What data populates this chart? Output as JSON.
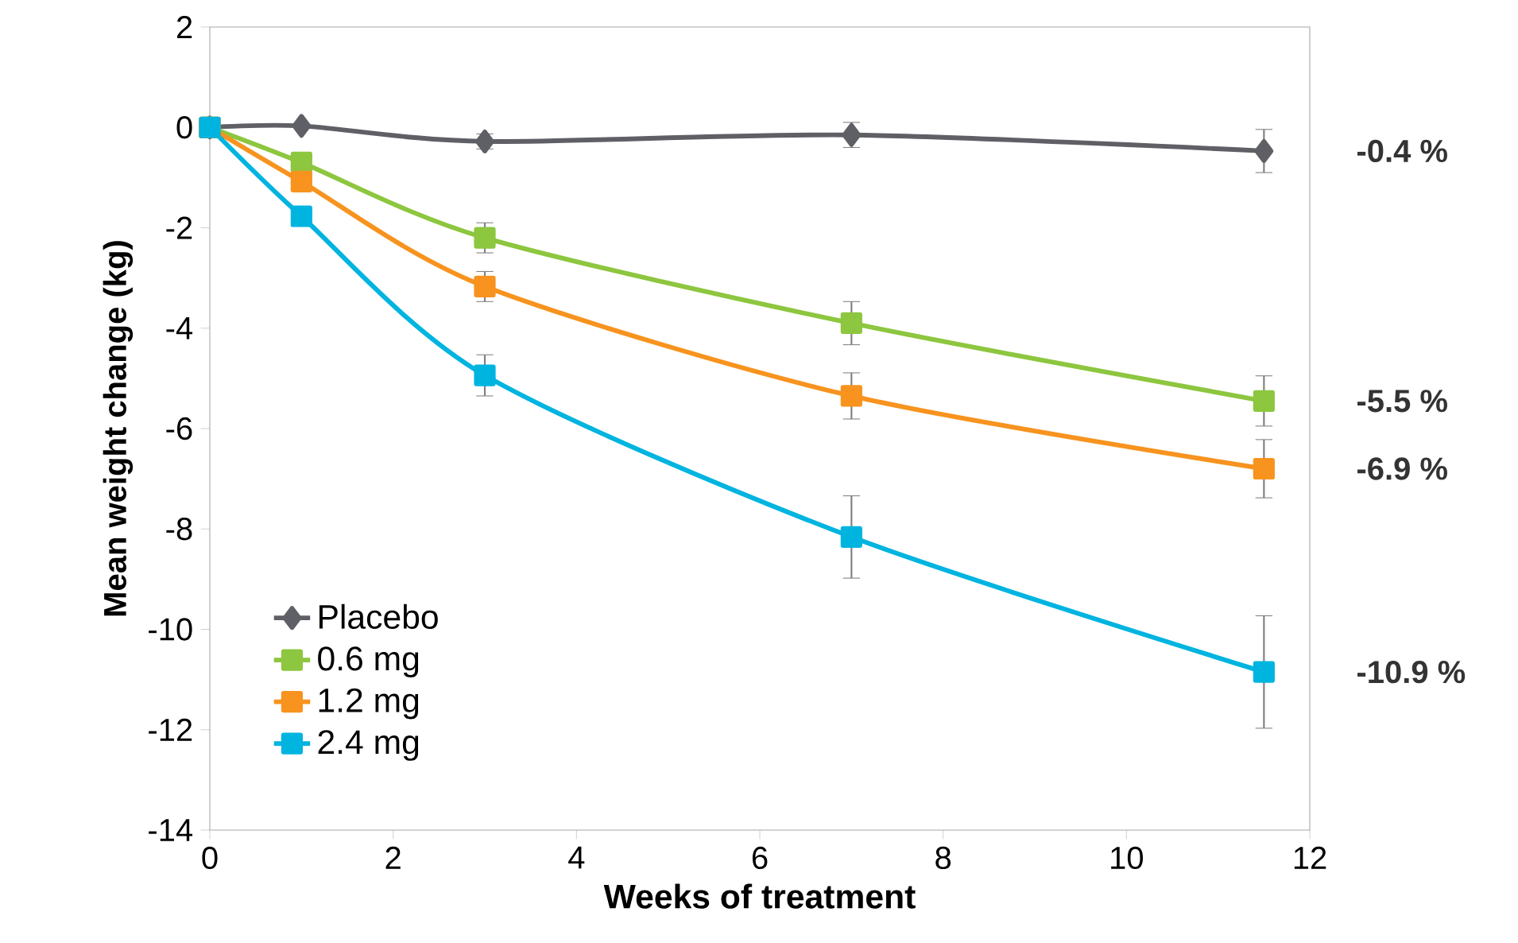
{
  "chart_data": {
    "type": "line",
    "xlabel": "Weeks of treatment",
    "ylabel": "Mean weight change (kg)",
    "xlim": [
      0,
      12
    ],
    "xticks": [
      0,
      2,
      4,
      6,
      8,
      10,
      12
    ],
    "ylim": [
      -14,
      2
    ],
    "yticks": [
      -14,
      -12,
      -10,
      -8,
      -6,
      -4,
      -2,
      0,
      2
    ],
    "grid": false,
    "legend": "bottom left",
    "series": [
      {
        "name": "Placebo",
        "color": "#5f5f66",
        "marker": "diamond",
        "x": [
          0,
          1,
          3,
          7,
          11.5
        ],
        "values": [
          0,
          0.03,
          -0.28,
          -0.15,
          -0.47
        ],
        "errors": [
          null,
          null,
          0.15,
          0.25,
          0.43
        ]
      },
      {
        "name": "0.6 mg",
        "color": "#8dc63f",
        "marker": "square",
        "x": [
          0,
          1,
          3,
          7,
          11.5
        ],
        "values": [
          0,
          -0.7,
          -2.2,
          -3.9,
          -5.45
        ],
        "errors": [
          null,
          null,
          0.3,
          0.43,
          0.5
        ]
      },
      {
        "name": "1.2 mg",
        "color": "#f7931e",
        "marker": "square",
        "x": [
          0,
          1,
          3,
          7,
          11.5
        ],
        "values": [
          0,
          -1.08,
          -3.17,
          -5.35,
          -6.8
        ],
        "errors": [
          null,
          null,
          0.3,
          0.46,
          0.58
        ]
      },
      {
        "name": "2.4 mg",
        "color": "#00b4e0",
        "marker": "square",
        "x": [
          0,
          1,
          3,
          7,
          11.5
        ],
        "values": [
          0,
          -1.77,
          -4.94,
          -8.16,
          -10.85
        ],
        "errors": [
          null,
          null,
          0.41,
          0.82,
          1.12
        ]
      }
    ],
    "annotations": [
      "-0.4 %",
      "-5.5 %",
      "-6.9 %",
      "-10.9 %"
    ]
  }
}
